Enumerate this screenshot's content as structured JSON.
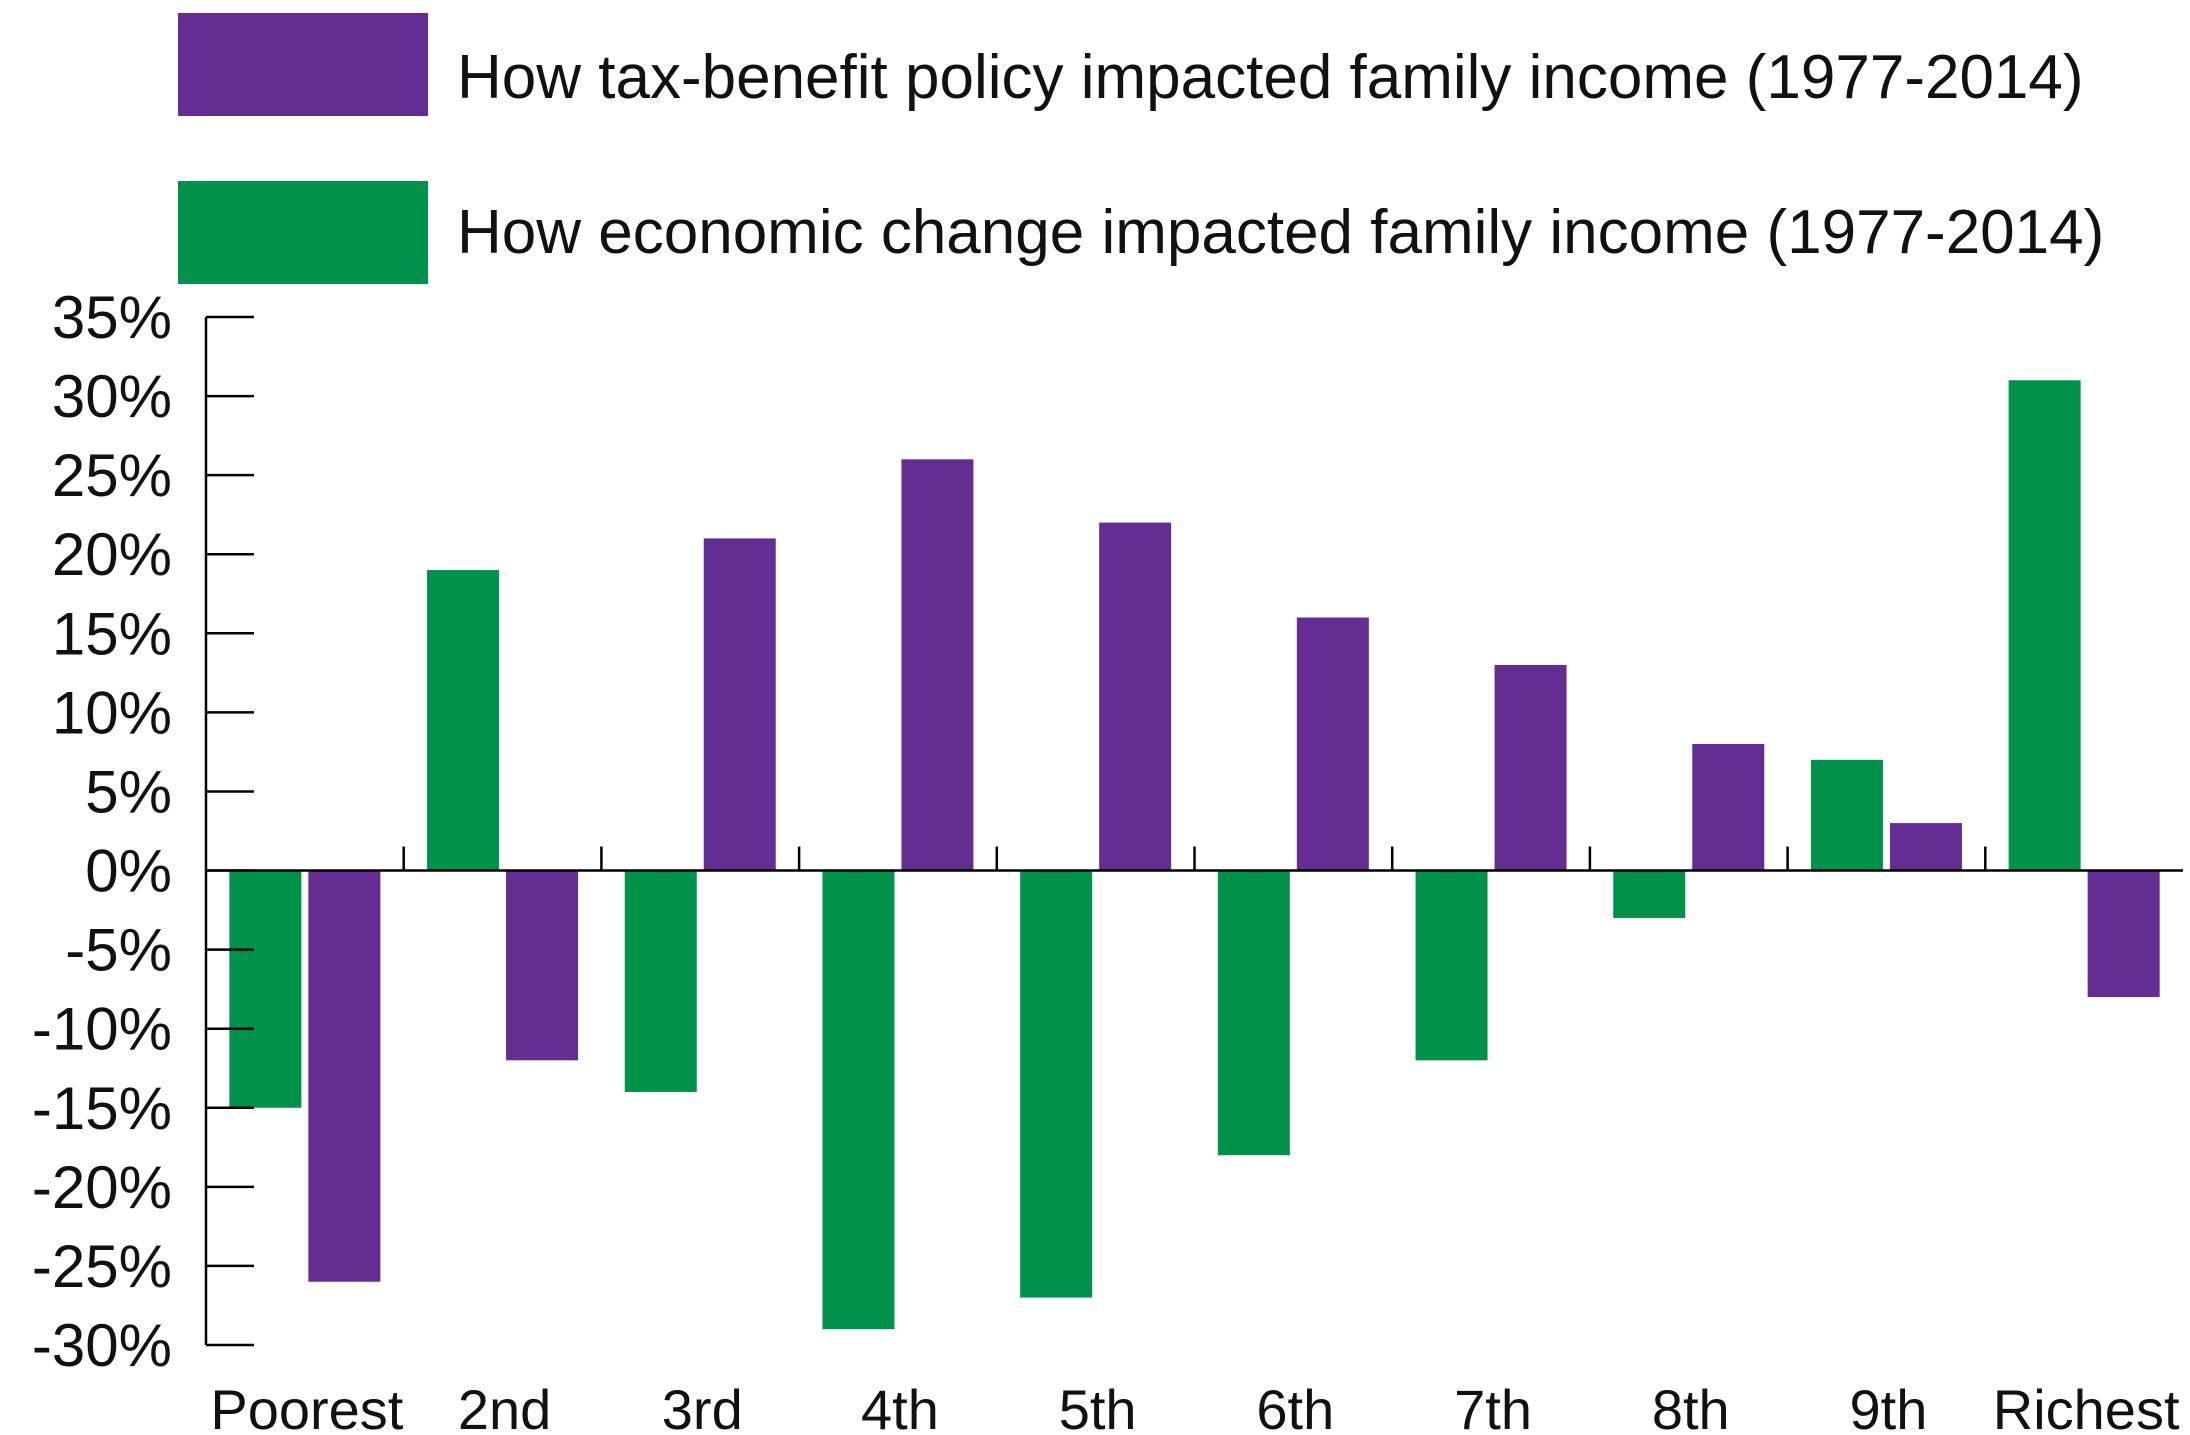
{
  "chart_data": {
    "type": "bar",
    "categories": [
      "Poorest",
      "2nd",
      "3rd",
      "4th",
      "5th",
      "6th",
      "7th",
      "8th",
      "9th",
      "Richest"
    ],
    "series": [
      {
        "name": "How economic change impacted family income (1977-2014)",
        "color": "#00924a",
        "values": [
          -15,
          19,
          -14,
          -29,
          -27,
          -18,
          -12,
          -3,
          7,
          31
        ]
      },
      {
        "name": "How tax-benefit policy impacted family income (1977-2014)",
        "color": "#642d91",
        "values": [
          -26,
          -12,
          21,
          26,
          22,
          16,
          13,
          8,
          3,
          -8
        ]
      }
    ],
    "legend_order": [
      1,
      0
    ],
    "legend_position": "top",
    "yticks": [
      "35%",
      "30%",
      "25%",
      "20%",
      "15%",
      "10%",
      "5%",
      "0%",
      "-5%",
      "-10%",
      "-15%",
      "-20%",
      "-25%",
      "-30%"
    ],
    "ylim": [
      -30,
      35
    ],
    "title": "",
    "xlabel": "",
    "ylabel": "",
    "grid": false
  }
}
